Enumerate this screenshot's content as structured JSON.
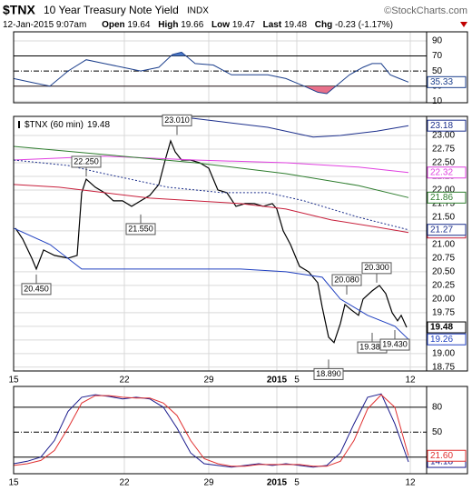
{
  "header": {
    "symbol": "$TNX",
    "name": "10 Year Treasury Note Yield",
    "exchange": "INDX",
    "credit": "©StockCharts.com",
    "date": "12-Jan-2015 9:07am",
    "open_label": "Open",
    "open": 19.64,
    "high_label": "High",
    "high": 19.66,
    "low_label": "Low",
    "low": 19.47,
    "last_label": "Last",
    "last": 19.48,
    "chg_label": "Chg",
    "chg": -0.23,
    "chg_pct": "(-1.17%)"
  },
  "chart_data": [
    {
      "type": "line",
      "xlim": [
        0,
        455
      ],
      "ylim": [
        8,
        102
      ],
      "yticks": [
        90,
        70,
        50,
        30,
        10
      ],
      "upper_band": 70,
      "lower_band": 30,
      "upper_fill": "#4a78c8",
      "lower_fill": "#e8708a",
      "series": [
        {
          "color": "#1c3f8c",
          "x": [
            0,
            20,
            40,
            60,
            80,
            100,
            120,
            140,
            160,
            175,
            185,
            200,
            220,
            240,
            260,
            280,
            300,
            310,
            320,
            335,
            345,
            355,
            370,
            385,
            395,
            405,
            415,
            425,
            435
          ],
          "values": [
            40,
            35,
            30,
            50,
            65,
            60,
            55,
            50,
            55,
            72,
            75,
            60,
            58,
            45,
            45,
            45,
            40,
            35,
            30,
            22,
            20,
            30,
            45,
            55,
            60,
            60,
            45,
            40,
            35.33
          ]
        }
      ]
    },
    {
      "type": "line",
      "legend": "$TNX (60 min)",
      "xlim": [
        0,
        455
      ],
      "ylim": [
        18.68,
        23.35
      ],
      "xticks": [
        {
          "value": 0,
          "label": "15"
        },
        {
          "value": 122,
          "label": "22"
        },
        {
          "value": 215,
          "label": "29"
        },
        {
          "value": 290,
          "label": "2015"
        },
        {
          "value": 312,
          "label": "5"
        },
        {
          "value": 437,
          "label": "12"
        }
      ],
      "yticks": [
        {
          "value": 23,
          "label": "23.00"
        },
        22.75,
        {
          "value": 22.5,
          "label": "22.50"
        },
        22.25,
        {
          "value": 22,
          "label": "22.00"
        },
        21.75,
        {
          "value": 21.5,
          "label": "21.50"
        },
        21.25,
        {
          "value": 21,
          "label": "21.00"
        },
        20.75,
        {
          "value": 20.5,
          "label": "20.50"
        },
        20.25,
        {
          "value": 20,
          "label": "20.00"
        },
        19.75,
        {
          "value": 19.5,
          "label": "19.50"
        },
        19.25,
        {
          "value": 19,
          "label": "19.00"
        },
        18.75
      ],
      "grid": true,
      "series": [
        {
          "color": "#000000",
          "width": 1.2,
          "x": [
            2,
            10,
            20,
            25,
            33,
            45,
            60,
            70,
            75,
            80,
            90,
            100,
            110,
            120,
            130,
            140,
            150,
            160,
            167,
            173,
            178,
            185,
            195,
            205,
            215,
            225,
            235,
            245,
            255,
            265,
            275,
            285,
            290,
            297,
            305,
            315,
            325,
            335,
            340,
            347,
            353,
            360,
            365,
            372,
            380,
            385,
            395,
            403,
            410,
            417,
            423,
            427,
            433
          ],
          "values": [
            21.3,
            21.1,
            20.75,
            20.55,
            20.9,
            20.8,
            20.75,
            20.8,
            21.95,
            22.2,
            22.05,
            21.95,
            21.8,
            21.8,
            21.7,
            21.8,
            21.9,
            22.1,
            22.55,
            22.9,
            22.7,
            22.55,
            22.55,
            22.5,
            22.4,
            22.0,
            21.95,
            21.7,
            21.75,
            21.75,
            21.7,
            21.75,
            21.65,
            21.25,
            21.0,
            20.6,
            20.5,
            20.3,
            19.85,
            19.3,
            19.2,
            19.55,
            19.9,
            19.8,
            19.7,
            20.0,
            20.15,
            20.25,
            20.1,
            19.75,
            19.6,
            19.7,
            19.48
          ]
        },
        {
          "color": "#1c2f8c",
          "x": [
            180,
            230,
            280,
            330,
            360,
            400,
            435
          ],
          "values": [
            23.35,
            23.25,
            23.15,
            22.97,
            23.0,
            23.08,
            23.18
          ]
        },
        {
          "color": "#e040e0",
          "x": [
            0,
            100,
            200,
            300,
            380,
            435
          ],
          "values": [
            22.55,
            22.62,
            22.55,
            22.5,
            22.42,
            22.32
          ]
        },
        {
          "color": "#2e7d2e",
          "x": [
            0,
            100,
            200,
            300,
            380,
            435
          ],
          "values": [
            22.8,
            22.65,
            22.5,
            22.3,
            22.08,
            21.86
          ]
        },
        {
          "color": "#c8203c",
          "x": [
            0,
            50,
            100,
            150,
            200,
            250,
            300,
            350,
            400,
            435
          ],
          "values": [
            22.1,
            22.05,
            21.95,
            21.85,
            21.8,
            21.75,
            21.65,
            21.45,
            21.32,
            21.22
          ]
        },
        {
          "color": "#1c2f8c",
          "dashed": true,
          "x": [
            0,
            60,
            100,
            170,
            230,
            280,
            320,
            380,
            435
          ],
          "values": [
            22.55,
            22.45,
            22.3,
            22.05,
            21.95,
            21.95,
            21.8,
            21.5,
            21.27
          ]
        },
        {
          "color": "#2040c0",
          "x": [
            0,
            40,
            75,
            150,
            250,
            300,
            340,
            360,
            390,
            420,
            435
          ],
          "values": [
            21.3,
            21.0,
            20.55,
            20.55,
            20.55,
            20.5,
            20.4,
            20.0,
            19.7,
            19.5,
            19.26
          ]
        }
      ],
      "annotations": [
        {
          "x": 180,
          "value": 23.01,
          "label": "23.010"
        },
        {
          "x": 80,
          "value": 22.25,
          "label": "22.250"
        },
        {
          "x": 140,
          "value": 21.55,
          "label": "21.550"
        },
        {
          "x": 25,
          "value": 20.45,
          "label": "20.450"
        },
        {
          "x": 367,
          "value": 20.08,
          "label": "20.080"
        },
        {
          "x": 400,
          "value": 20.3,
          "label": "20.300"
        },
        {
          "x": 395,
          "value": 19.38,
          "label": "19.380"
        },
        {
          "x": 420,
          "value": 19.43,
          "label": "19.430"
        },
        {
          "x": 347,
          "value": 18.89,
          "label": "18.890"
        }
      ]
    },
    {
      "type": "line",
      "xlim": [
        0,
        455
      ],
      "ylim": [
        0,
        105
      ],
      "yticks": [
        80,
        50,
        20
      ],
      "series": [
        {
          "color": "#1a1a8c",
          "x": [
            0,
            15,
            30,
            45,
            60,
            75,
            90,
            105,
            120,
            135,
            150,
            165,
            180,
            195,
            210,
            225,
            240,
            255,
            270,
            285,
            300,
            315,
            330,
            345,
            360,
            375,
            390,
            405,
            420,
            435
          ],
          "values": [
            12,
            15,
            20,
            40,
            75,
            92,
            95,
            93,
            90,
            92,
            90,
            80,
            55,
            25,
            12,
            10,
            8,
            10,
            12,
            10,
            12,
            10,
            8,
            10,
            25,
            60,
            92,
            96,
            60,
            14.18
          ]
        },
        {
          "color": "#e03030",
          "x": [
            0,
            15,
            30,
            45,
            60,
            75,
            90,
            105,
            120,
            135,
            150,
            165,
            180,
            195,
            210,
            225,
            240,
            255,
            270,
            285,
            300,
            315,
            330,
            345,
            360,
            375,
            390,
            405,
            420,
            435
          ],
          "values": [
            10,
            12,
            16,
            28,
            55,
            85,
            94,
            94,
            92,
            91,
            91,
            85,
            70,
            40,
            18,
            12,
            9,
            9,
            11,
            11,
            11,
            11,
            9,
            9,
            15,
            40,
            78,
            95,
            80,
            21.6
          ],
          "value_labels": [
            null,
            null,
            null,
            null,
            null,
            null,
            null,
            null,
            null,
            null,
            null,
            null,
            null,
            null,
            null,
            null,
            null,
            null,
            null,
            null,
            null,
            null,
            null,
            null,
            null,
            null,
            null,
            null,
            null,
            "21.60"
          ]
        }
      ]
    }
  ]
}
